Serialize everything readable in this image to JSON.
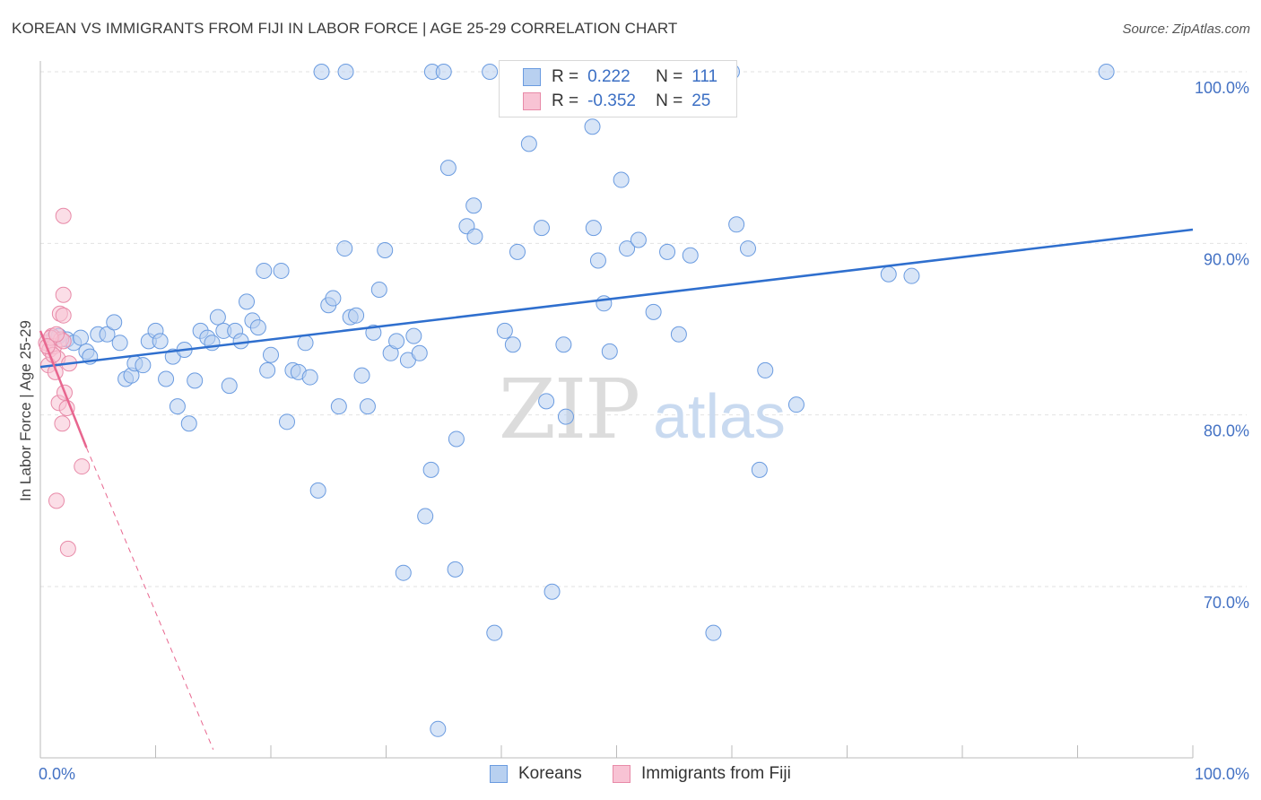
{
  "title": "KOREAN VS IMMIGRANTS FROM FIJI IN LABOR FORCE | AGE 25-29 CORRELATION CHART",
  "source": "Source: ZipAtlas.com",
  "watermark": {
    "zip": "ZIP",
    "atlas": "atlas"
  },
  "legend": {
    "r_label": "R =",
    "n_label": "N =",
    "rows": [
      {
        "r": "0.222",
        "n": "111",
        "fill": "#b8d0f0",
        "stroke": "#6a9be0"
      },
      {
        "r": "-0.352",
        "n": "25",
        "fill": "#f8c3d4",
        "stroke": "#e88aa8"
      }
    ]
  },
  "bottom_legend": [
    {
      "label": "Koreans",
      "fill": "#b8d0f0",
      "stroke": "#6a9be0"
    },
    {
      "label": "Immigrants from Fiji",
      "fill": "#f8c3d4",
      "stroke": "#e88aa8"
    }
  ],
  "chart_data": {
    "type": "scatter",
    "title": "KOREAN VS IMMIGRANTS FROM FIJI IN LABOR FORCE | AGE 25-29 CORRELATION CHART",
    "xlabel": "",
    "ylabel": "In Labor Force | Age 25-29",
    "xlim": [
      0,
      100
    ],
    "ylim": [
      60.5,
      101
    ],
    "x_tick_labels": [
      "0.0%",
      "100.0%"
    ],
    "y_ticks": [
      70,
      80,
      90,
      100
    ],
    "y_tick_labels": [
      "70.0%",
      "80.0%",
      "90.0%",
      "100.0%"
    ],
    "grid": true,
    "colors": {
      "koreans": "#6a9be0",
      "fiji": "#e88aa8",
      "koreans_line": "#2f6fce",
      "fiji_line": "#e8668f"
    },
    "series": [
      {
        "name": "Koreans",
        "trend": {
          "x": [
            0,
            100
          ],
          "y": [
            82.8,
            90.8
          ]
        },
        "points": [
          [
            1.2,
            84.5
          ],
          [
            1.6,
            84.6
          ],
          [
            2.3,
            84.4
          ],
          [
            2.9,
            84.2
          ],
          [
            3.5,
            84.5
          ],
          [
            4.0,
            83.7
          ],
          [
            4.3,
            83.4
          ],
          [
            5.0,
            84.7
          ],
          [
            5.8,
            84.7
          ],
          [
            6.4,
            85.4
          ],
          [
            6.9,
            84.2
          ],
          [
            7.4,
            82.1
          ],
          [
            7.9,
            82.3
          ],
          [
            8.2,
            83.0
          ],
          [
            8.9,
            82.9
          ],
          [
            9.4,
            84.3
          ],
          [
            10.0,
            84.9
          ],
          [
            10.4,
            84.3
          ],
          [
            10.9,
            82.1
          ],
          [
            11.5,
            83.4
          ],
          [
            11.9,
            80.5
          ],
          [
            12.5,
            83.8
          ],
          [
            12.9,
            79.5
          ],
          [
            13.4,
            82.0
          ],
          [
            13.9,
            84.9
          ],
          [
            14.5,
            84.5
          ],
          [
            14.9,
            84.2
          ],
          [
            15.4,
            85.7
          ],
          [
            15.9,
            84.9
          ],
          [
            16.4,
            81.7
          ],
          [
            16.9,
            84.9
          ],
          [
            17.4,
            84.3
          ],
          [
            17.9,
            86.6
          ],
          [
            18.4,
            85.5
          ],
          [
            18.9,
            85.1
          ],
          [
            19.4,
            88.4
          ],
          [
            19.7,
            82.6
          ],
          [
            20.0,
            83.5
          ],
          [
            20.9,
            88.4
          ],
          [
            21.4,
            79.6
          ],
          [
            21.9,
            82.6
          ],
          [
            22.4,
            82.5
          ],
          [
            23.0,
            84.2
          ],
          [
            23.4,
            82.2
          ],
          [
            24.1,
            75.6
          ],
          [
            24.4,
            100.0
          ],
          [
            25.0,
            86.4
          ],
          [
            25.4,
            86.8
          ],
          [
            25.9,
            80.5
          ],
          [
            26.4,
            89.7
          ],
          [
            26.9,
            85.7
          ],
          [
            27.4,
            85.8
          ],
          [
            27.9,
            82.3
          ],
          [
            28.4,
            80.5
          ],
          [
            28.9,
            84.8
          ],
          [
            29.4,
            87.3
          ],
          [
            29.9,
            89.6
          ],
          [
            30.4,
            83.6
          ],
          [
            30.9,
            84.3
          ],
          [
            31.5,
            70.8
          ],
          [
            31.9,
            83.2
          ],
          [
            32.4,
            84.6
          ],
          [
            32.9,
            83.6
          ],
          [
            33.4,
            74.1
          ],
          [
            33.9,
            76.8
          ],
          [
            34.5,
            61.7
          ],
          [
            34.0,
            100.0
          ],
          [
            35.0,
            100.0
          ],
          [
            35.4,
            94.4
          ],
          [
            36.1,
            78.6
          ],
          [
            36.0,
            71.0
          ],
          [
            37.0,
            91.0
          ],
          [
            37.6,
            92.2
          ],
          [
            37.7,
            90.4
          ],
          [
            39.0,
            100.0
          ],
          [
            39.4,
            67.3
          ],
          [
            40.3,
            84.9
          ],
          [
            41.0,
            84.1
          ],
          [
            41.4,
            89.5
          ],
          [
            42.4,
            95.8
          ],
          [
            43.5,
            90.9
          ],
          [
            43.9,
            80.8
          ],
          [
            44.4,
            69.7
          ],
          [
            45.4,
            84.1
          ],
          [
            45.6,
            79.9
          ],
          [
            46.0,
            100.0
          ],
          [
            47.9,
            96.8
          ],
          [
            48.4,
            89.0
          ],
          [
            48.9,
            86.5
          ],
          [
            49.4,
            83.7
          ],
          [
            50.4,
            93.7
          ],
          [
            50.9,
            89.7
          ],
          [
            51.9,
            90.2
          ],
          [
            53.2,
            86.0
          ],
          [
            54.4,
            89.5
          ],
          [
            55.4,
            84.7
          ],
          [
            56.4,
            89.3
          ],
          [
            58.4,
            67.3
          ],
          [
            59.0,
            100.0
          ],
          [
            60.0,
            100.0
          ],
          [
            60.4,
            91.1
          ],
          [
            61.4,
            89.7
          ],
          [
            62.4,
            76.8
          ],
          [
            62.9,
            82.6
          ],
          [
            65.6,
            80.6
          ],
          [
            73.6,
            88.2
          ],
          [
            75.6,
            88.1
          ],
          [
            92.5,
            100.0
          ],
          [
            53.4,
            99.9
          ],
          [
            26.5,
            100.0
          ],
          [
            48.0,
            90.9
          ]
        ]
      },
      {
        "name": "Immigrants from Fiji",
        "trend": {
          "x": [
            0,
            4.0
          ],
          "y": [
            84.9,
            78.1
          ]
        },
        "trend_dashed": {
          "x": [
            4.0,
            15.0
          ],
          "y": [
            78.1,
            60.5
          ]
        },
        "points": [
          [
            0.5,
            84.2
          ],
          [
            0.8,
            83.8
          ],
          [
            1.0,
            84.6
          ],
          [
            1.2,
            84.0
          ],
          [
            1.5,
            83.3
          ],
          [
            1.8,
            84.4
          ],
          [
            2.0,
            84.3
          ],
          [
            0.7,
            82.9
          ],
          [
            1.3,
            82.5
          ],
          [
            1.6,
            80.7
          ],
          [
            1.9,
            79.5
          ],
          [
            2.1,
            81.3
          ],
          [
            2.3,
            80.4
          ],
          [
            2.5,
            83.0
          ],
          [
            1.7,
            85.9
          ],
          [
            2.0,
            85.8
          ],
          [
            2.0,
            87.0
          ],
          [
            2.0,
            91.6
          ],
          [
            1.4,
            75.0
          ],
          [
            2.4,
            72.2
          ],
          [
            3.6,
            77.0
          ],
          [
            0.9,
            84.5
          ],
          [
            1.1,
            83.5
          ],
          [
            0.6,
            84.0
          ],
          [
            1.4,
            84.7
          ]
        ]
      }
    ]
  }
}
